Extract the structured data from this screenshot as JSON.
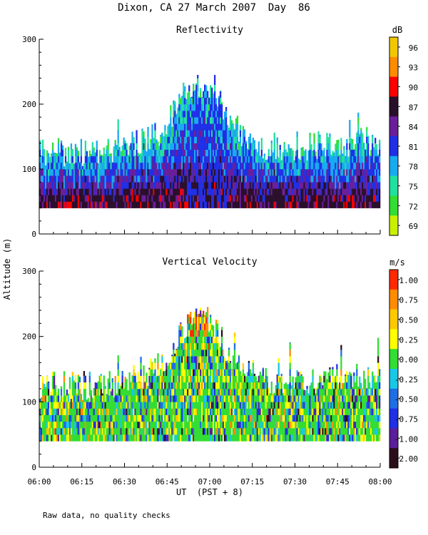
{
  "figure": {
    "title": "Dixon, CA 27 March 2007  Day  86",
    "shared_ylabel": "Altitude (m)",
    "xlabel": "UT  (PST + 8)",
    "footnote": "Raw data, no quality checks"
  },
  "chart_data": [
    {
      "type": "heatmap",
      "title": "Reflectivity",
      "xlabel": "UT  (PST + 8)",
      "ylabel": "Altitude (m)",
      "x_ticks": [
        "06:00",
        "06:15",
        "06:30",
        "06:45",
        "07:00",
        "07:15",
        "07:30",
        "07:45",
        "08:00"
      ],
      "x_range_minutes": [
        0,
        120
      ],
      "y_ticks": [
        "0",
        "100",
        "200",
        "300"
      ],
      "ylim": [
        0,
        300
      ],
      "colorbar": {
        "unit": "dB",
        "labels": [
          "96",
          "93",
          "90",
          "87",
          "84",
          "81",
          "78",
          "75",
          "72",
          "69"
        ],
        "colors": [
          "#f0c800",
          "#ff8c00",
          "#ff0000",
          "#2a0f2a",
          "#6a1f9a",
          "#1f2fe6",
          "#19aaf0",
          "#22e0a0",
          "#33dd33",
          "#c8f000"
        ],
        "range": [
          67.5,
          97.5
        ]
      },
      "echo_profile": [
        {
          "t": 0,
          "top": 120
        },
        {
          "t": 15,
          "top": 120
        },
        {
          "t": 30,
          "top": 125
        },
        {
          "t": 42,
          "top": 150
        },
        {
          "t": 52,
          "top": 215
        },
        {
          "t": 57,
          "top": 225
        },
        {
          "t": 62,
          "top": 210
        },
        {
          "t": 68,
          "top": 160
        },
        {
          "t": 80,
          "top": 130
        },
        {
          "t": 95,
          "top": 130
        },
        {
          "t": 110,
          "top": 135
        },
        {
          "t": 120,
          "top": 140
        }
      ],
      "echo_base_m": 40
    },
    {
      "type": "heatmap",
      "title": "Vertical Velocity",
      "xlabel": "UT  (PST + 8)",
      "ylabel": "Altitude (m)",
      "x_ticks": [
        "06:00",
        "06:15",
        "06:30",
        "06:45",
        "07:00",
        "07:15",
        "07:30",
        "07:45",
        "08:00"
      ],
      "x_range_minutes": [
        0,
        120
      ],
      "y_ticks": [
        "0",
        "100",
        "200",
        "300"
      ],
      "ylim": [
        0,
        300
      ],
      "colorbar": {
        "unit": "m/s",
        "labels": [
          "1.00",
          "0.75",
          "0.50",
          "0.25",
          "0.00",
          "-0.25",
          "-0.50",
          "-0.75",
          "-1.00",
          "-2.00"
        ],
        "colors": [
          "#ff2a00",
          "#ff8c00",
          "#ffc800",
          "#ffff00",
          "#33dd33",
          "#19c8e6",
          "#1f6ee6",
          "#1f2fe6",
          "#5a1f9a",
          "#2a0f1a"
        ],
        "range": [
          -2.0,
          1.25
        ]
      },
      "echo_profile": [
        {
          "t": 0,
          "top": 120
        },
        {
          "t": 15,
          "top": 120
        },
        {
          "t": 30,
          "top": 125
        },
        {
          "t": 42,
          "top": 150
        },
        {
          "t": 52,
          "top": 215
        },
        {
          "t": 57,
          "top": 225
        },
        {
          "t": 62,
          "top": 210
        },
        {
          "t": 68,
          "top": 160
        },
        {
          "t": 80,
          "top": 130
        },
        {
          "t": 95,
          "top": 130
        },
        {
          "t": 110,
          "top": 135
        },
        {
          "t": 120,
          "top": 140
        }
      ],
      "echo_base_m": 40
    }
  ]
}
